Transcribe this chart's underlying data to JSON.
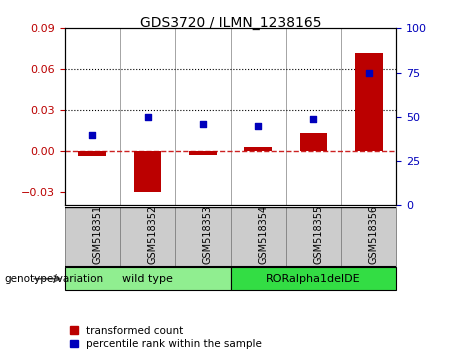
{
  "title": "GDS3720 / ILMN_1238165",
  "samples": [
    "GSM518351",
    "GSM518352",
    "GSM518353",
    "GSM518354",
    "GSM518355",
    "GSM518356"
  ],
  "transformed_count": [
    -0.004,
    -0.03,
    -0.003,
    0.003,
    0.013,
    0.072
  ],
  "percentile_rank": [
    40,
    50,
    46,
    45,
    49,
    75
  ],
  "groups": [
    {
      "label": "wild type",
      "samples": [
        0,
        1,
        2
      ],
      "color": "#90ee90"
    },
    {
      "label": "RORalpha1delDE",
      "samples": [
        3,
        4,
        5
      ],
      "color": "#33dd44"
    }
  ],
  "ylim_left": [
    -0.04,
    0.09
  ],
  "ylim_right": [
    0,
    100
  ],
  "yticks_left": [
    -0.03,
    0,
    0.03,
    0.06,
    0.09
  ],
  "yticks_right": [
    0,
    25,
    50,
    75,
    100
  ],
  "hlines": [
    0.03,
    0.06
  ],
  "bar_color": "#bb0000",
  "dot_color": "#0000bb",
  "zero_line_color": "#cc2222",
  "hline_color": "black",
  "hline_style": ":",
  "zero_line_style": "--",
  "legend_items": [
    "transformed count",
    "percentile rank within the sample"
  ],
  "genotype_label": "genotype/variation",
  "sample_bg": "#cccccc",
  "plot_bg": "#ffffff",
  "bar_width": 0.5
}
